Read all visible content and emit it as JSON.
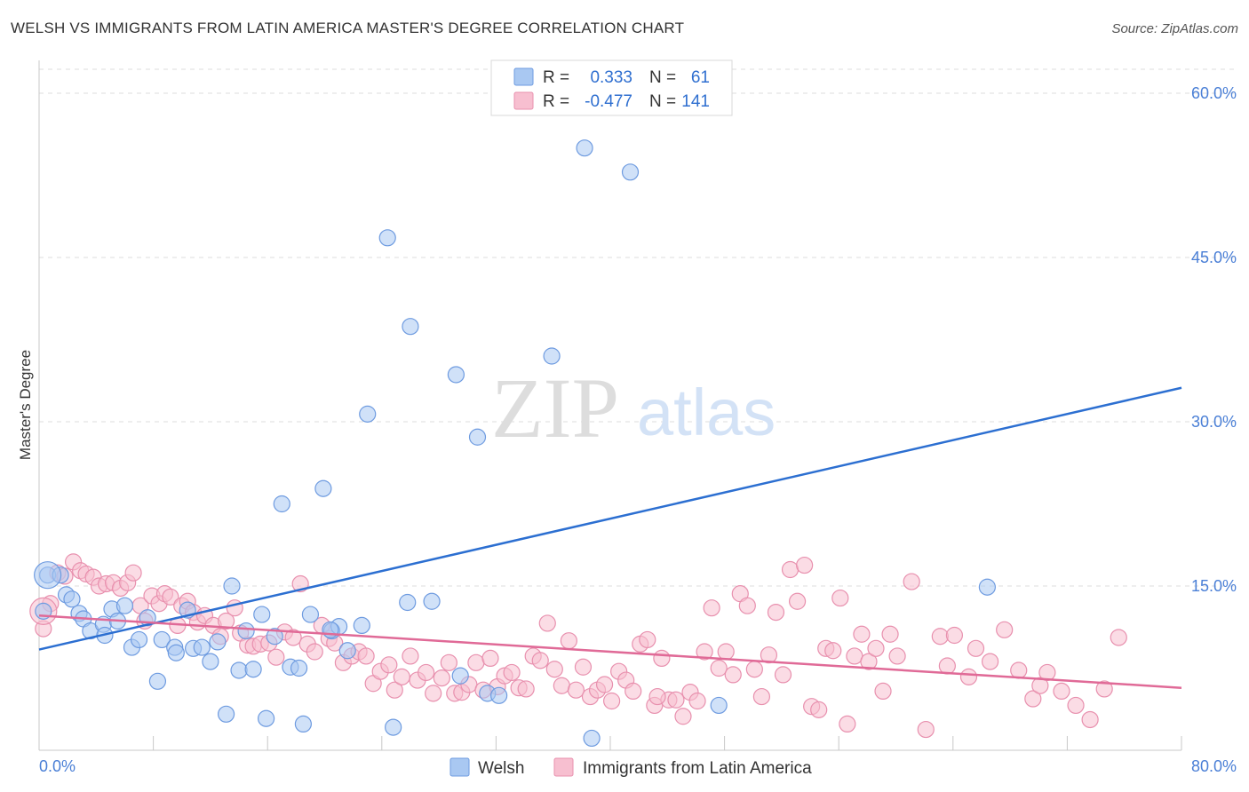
{
  "title": "WELSH VS IMMIGRANTS FROM LATIN AMERICA MASTER'S DEGREE CORRELATION CHART",
  "source": "Source: ZipAtlas.com",
  "watermark": {
    "zip": "ZIP",
    "atlas": "atlas"
  },
  "stats": {
    "r_label": "R =",
    "n_label": "N =",
    "rows": [
      {
        "r": "0.333",
        "n": "61",
        "color": "#a9c8f2",
        "stroke": "#6e9be0"
      },
      {
        "r": "-0.477",
        "n": "141",
        "color": "#f7bfd0",
        "stroke": "#e890ae"
      }
    ]
  },
  "legend": [
    {
      "label": "Welsh",
      "color": "#a9c8f2",
      "stroke": "#6e9be0"
    },
    {
      "label": "Immigrants from Latin America",
      "color": "#f7bfd0",
      "stroke": "#e890ae"
    }
  ],
  "chart_data": {
    "type": "scatter",
    "title": "WELSH VS IMMIGRANTS FROM LATIN AMERICA MASTER'S DEGREE CORRELATION CHART",
    "xlabel": "",
    "ylabel": "Master's Degree",
    "xlim": [
      0,
      80
    ],
    "ylim": [
      0,
      63
    ],
    "x_tick_labels": [
      "0.0%",
      "80.0%"
    ],
    "y_ticks": [
      15,
      30,
      45,
      60
    ],
    "y_tick_labels": [
      "15.0%",
      "30.0%",
      "45.0%",
      "60.0%"
    ],
    "grid": true,
    "legend_position": "bottom",
    "series": [
      {
        "name": "Welsh",
        "color": "#a9c8f2",
        "stroke": "#6e9be0",
        "line_color": "#2c6fd1",
        "trend": [
          [
            0,
            9.2
          ],
          [
            80,
            33.1
          ]
        ],
        "points": [
          [
            0.3,
            12.7
          ],
          [
            0.6,
            16.0
          ],
          [
            1.5,
            16.0
          ],
          [
            1.9,
            14.2
          ],
          [
            2.3,
            13.8
          ],
          [
            2.8,
            12.5
          ],
          [
            3.1,
            12.0
          ],
          [
            3.6,
            10.9
          ],
          [
            4.5,
            11.5
          ],
          [
            4.6,
            10.5
          ],
          [
            5.1,
            12.9
          ],
          [
            5.5,
            11.8
          ],
          [
            6.0,
            13.2
          ],
          [
            6.5,
            9.4
          ],
          [
            7.0,
            10.1
          ],
          [
            7.6,
            12.1
          ],
          [
            8.3,
            6.3
          ],
          [
            8.6,
            10.1
          ],
          [
            9.5,
            9.4
          ],
          [
            9.6,
            8.9
          ],
          [
            10.4,
            12.8
          ],
          [
            10.8,
            9.3
          ],
          [
            11.4,
            9.4
          ],
          [
            12.0,
            8.1
          ],
          [
            12.5,
            9.9
          ],
          [
            13.1,
            3.3
          ],
          [
            13.5,
            15.0
          ],
          [
            14.0,
            7.3
          ],
          [
            14.5,
            10.9
          ],
          [
            15.0,
            7.4
          ],
          [
            15.6,
            12.4
          ],
          [
            15.9,
            2.9
          ],
          [
            16.5,
            10.4
          ],
          [
            17.0,
            22.5
          ],
          [
            17.6,
            7.6
          ],
          [
            18.2,
            7.5
          ],
          [
            18.5,
            2.4
          ],
          [
            19.0,
            12.4
          ],
          [
            19.9,
            23.9
          ],
          [
            20.5,
            10.9
          ],
          [
            21.0,
            11.3
          ],
          [
            21.6,
            9.1
          ],
          [
            22.6,
            11.4
          ],
          [
            23.0,
            30.7
          ],
          [
            24.4,
            46.8
          ],
          [
            24.8,
            2.1
          ],
          [
            25.8,
            13.5
          ],
          [
            26.0,
            38.7
          ],
          [
            27.5,
            13.6
          ],
          [
            29.2,
            34.3
          ],
          [
            30.7,
            28.6
          ],
          [
            31.4,
            5.2
          ],
          [
            32.2,
            5.0
          ],
          [
            35.9,
            36.0
          ],
          [
            38.2,
            55.0
          ],
          [
            38.7,
            1.1
          ],
          [
            41.4,
            52.8
          ],
          [
            47.6,
            4.1
          ],
          [
            66.4,
            14.9
          ],
          [
            29.5,
            6.8
          ],
          [
            20.4,
            11.0
          ]
        ]
      },
      {
        "name": "Immigrants from Latin America",
        "color": "#f7bfd0",
        "stroke": "#e890ae",
        "line_color": "#e06a97",
        "trend": [
          [
            0,
            12.3
          ],
          [
            80,
            5.7
          ]
        ],
        "points": [
          [
            0.3,
            11.1
          ],
          [
            0.8,
            13.4
          ],
          [
            1.3,
            16.2
          ],
          [
            1.8,
            15.9
          ],
          [
            2.4,
            17.2
          ],
          [
            2.9,
            16.4
          ],
          [
            3.3,
            16.1
          ],
          [
            3.8,
            15.8
          ],
          [
            4.2,
            15.0
          ],
          [
            4.7,
            15.2
          ],
          [
            5.2,
            15.3
          ],
          [
            5.7,
            14.8
          ],
          [
            6.2,
            15.3
          ],
          [
            6.6,
            16.2
          ],
          [
            7.1,
            13.2
          ],
          [
            7.4,
            11.8
          ],
          [
            7.9,
            14.1
          ],
          [
            8.4,
            13.4
          ],
          [
            8.8,
            14.3
          ],
          [
            9.2,
            14.0
          ],
          [
            9.7,
            11.4
          ],
          [
            10.0,
            13.2
          ],
          [
            10.4,
            13.6
          ],
          [
            10.8,
            12.6
          ],
          [
            11.1,
            11.7
          ],
          [
            11.6,
            12.3
          ],
          [
            12.2,
            11.4
          ],
          [
            12.7,
            10.4
          ],
          [
            13.1,
            11.8
          ],
          [
            13.7,
            13.0
          ],
          [
            14.1,
            10.7
          ],
          [
            14.6,
            9.6
          ],
          [
            15.0,
            9.5
          ],
          [
            15.5,
            9.7
          ],
          [
            16.1,
            9.8
          ],
          [
            16.6,
            8.5
          ],
          [
            17.2,
            10.8
          ],
          [
            17.8,
            10.3
          ],
          [
            18.3,
            15.2
          ],
          [
            18.8,
            9.7
          ],
          [
            19.3,
            9.0
          ],
          [
            19.8,
            11.4
          ],
          [
            20.3,
            10.2
          ],
          [
            20.7,
            9.8
          ],
          [
            21.3,
            8.0
          ],
          [
            21.9,
            8.6
          ],
          [
            22.4,
            9.0
          ],
          [
            22.9,
            8.6
          ],
          [
            23.4,
            6.1
          ],
          [
            23.9,
            7.2
          ],
          [
            24.5,
            7.8
          ],
          [
            24.9,
            5.5
          ],
          [
            25.4,
            6.7
          ],
          [
            26.0,
            8.6
          ],
          [
            26.5,
            6.4
          ],
          [
            27.1,
            7.1
          ],
          [
            27.6,
            5.2
          ],
          [
            28.2,
            6.6
          ],
          [
            28.7,
            8.0
          ],
          [
            29.1,
            5.2
          ],
          [
            29.6,
            5.3
          ],
          [
            30.1,
            6.0
          ],
          [
            30.6,
            8.0
          ],
          [
            31.1,
            5.5
          ],
          [
            31.6,
            8.4
          ],
          [
            32.1,
            5.8
          ],
          [
            32.6,
            6.8
          ],
          [
            33.1,
            7.1
          ],
          [
            33.6,
            5.7
          ],
          [
            34.1,
            5.6
          ],
          [
            34.6,
            8.6
          ],
          [
            35.1,
            8.2
          ],
          [
            35.6,
            11.6
          ],
          [
            36.1,
            7.4
          ],
          [
            36.6,
            5.9
          ],
          [
            37.1,
            10.0
          ],
          [
            37.6,
            5.5
          ],
          [
            38.1,
            7.6
          ],
          [
            38.6,
            4.9
          ],
          [
            39.1,
            5.5
          ],
          [
            39.6,
            6.0
          ],
          [
            40.1,
            4.5
          ],
          [
            40.6,
            7.2
          ],
          [
            41.1,
            6.4
          ],
          [
            41.6,
            5.4
          ],
          [
            42.1,
            9.7
          ],
          [
            42.6,
            10.1
          ],
          [
            43.1,
            4.1
          ],
          [
            43.6,
            8.4
          ],
          [
            44.1,
            4.6
          ],
          [
            44.6,
            4.6
          ],
          [
            45.1,
            3.1
          ],
          [
            45.6,
            5.3
          ],
          [
            46.1,
            4.5
          ],
          [
            46.6,
            9.0
          ],
          [
            47.1,
            13.0
          ],
          [
            47.6,
            7.5
          ],
          [
            48.1,
            9.0
          ],
          [
            48.6,
            6.9
          ],
          [
            49.1,
            14.3
          ],
          [
            49.6,
            13.2
          ],
          [
            50.1,
            7.4
          ],
          [
            50.6,
            4.9
          ],
          [
            51.1,
            8.7
          ],
          [
            51.6,
            12.6
          ],
          [
            52.1,
            6.9
          ],
          [
            52.6,
            16.5
          ],
          [
            53.1,
            13.6
          ],
          [
            53.6,
            16.9
          ],
          [
            54.1,
            4.0
          ],
          [
            54.6,
            3.7
          ],
          [
            55.1,
            9.3
          ],
          [
            55.6,
            9.1
          ],
          [
            56.1,
            13.9
          ],
          [
            56.6,
            2.4
          ],
          [
            57.1,
            8.6
          ],
          [
            57.6,
            10.6
          ],
          [
            58.1,
            8.1
          ],
          [
            58.6,
            9.3
          ],
          [
            59.1,
            5.4
          ],
          [
            59.6,
            10.6
          ],
          [
            60.1,
            8.6
          ],
          [
            61.1,
            15.4
          ],
          [
            62.1,
            1.9
          ],
          [
            63.1,
            10.4
          ],
          [
            63.6,
            7.7
          ],
          [
            64.1,
            10.5
          ],
          [
            65.1,
            6.7
          ],
          [
            65.6,
            9.3
          ],
          [
            66.6,
            8.1
          ],
          [
            67.6,
            11.0
          ],
          [
            68.6,
            7.3
          ],
          [
            69.6,
            4.7
          ],
          [
            70.1,
            5.9
          ],
          [
            70.6,
            7.1
          ],
          [
            71.6,
            5.4
          ],
          [
            72.6,
            4.1
          ],
          [
            74.6,
            5.6
          ],
          [
            75.6,
            10.3
          ],
          [
            73.6,
            2.8
          ],
          [
            43.3,
            4.9
          ]
        ]
      }
    ]
  }
}
